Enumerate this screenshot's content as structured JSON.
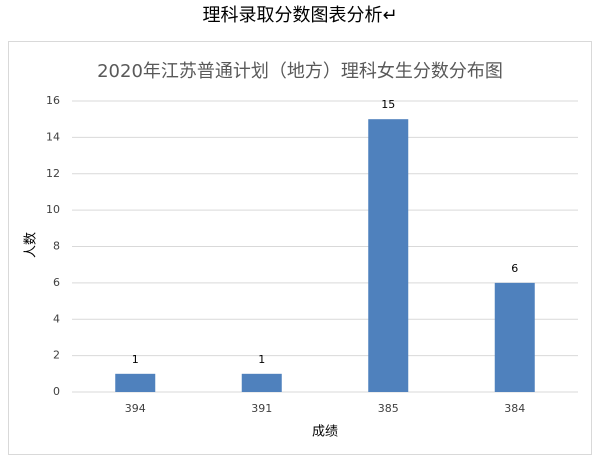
{
  "header": {
    "title": "理科录取分数图表分析↵"
  },
  "chart_data": {
    "type": "bar",
    "title": "2020年江苏普通计划（地方）理科女生分数分布图",
    "x_label": "成绩",
    "y_label": "人数",
    "categories": [
      "394",
      "391",
      "385",
      "384"
    ],
    "values": [
      1,
      1,
      15,
      6
    ],
    "color": "#4f81bd",
    "ylim": [
      0,
      16
    ],
    "yticks": [
      0,
      2,
      4,
      6,
      8,
      10,
      12,
      14,
      16
    ],
    "grid": true
  }
}
